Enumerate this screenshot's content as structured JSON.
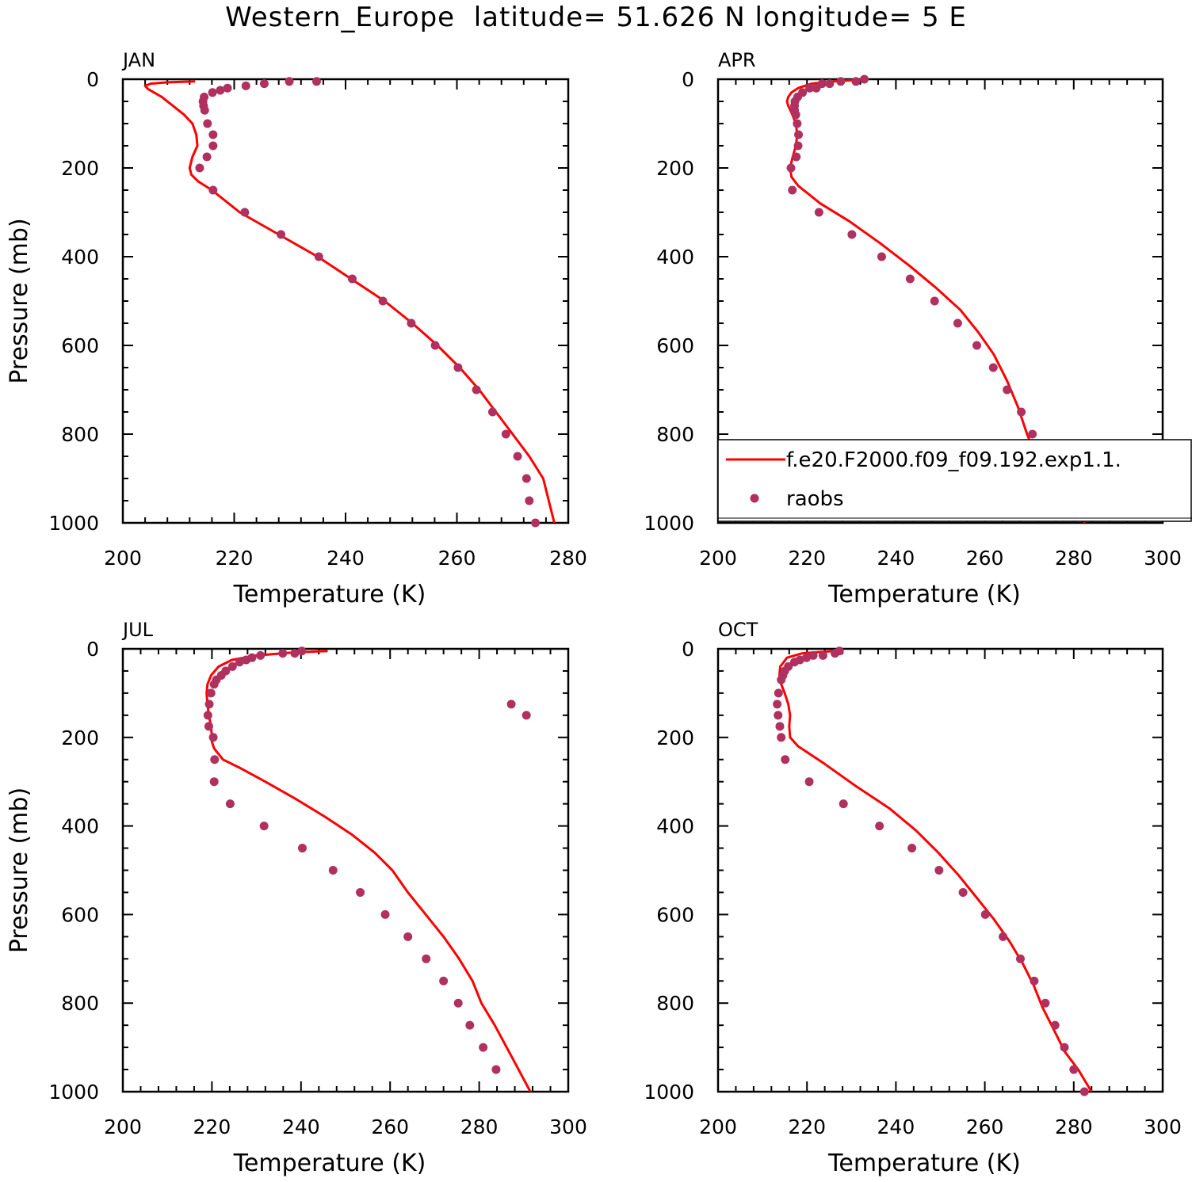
{
  "title": "Western_Europe  latitude= 51.626 N longitude= 5 E",
  "chart_data": [
    {
      "type": "line",
      "panel": "JAN",
      "xlabel": "Temperature (K)",
      "ylabel": "Pressure (mb)",
      "xlim": [
        200,
        280
      ],
      "xticks": [
        200,
        220,
        240,
        260,
        280
      ],
      "ylim": [
        1000,
        0
      ],
      "yticks": [
        0,
        200,
        400,
        600,
        800,
        1000
      ],
      "series": [
        {
          "name": "f.e20.F2000.f09_f09.192.exp1.1.",
          "kind": "line",
          "color": "#ff0000",
          "x": [
            213.0,
            208.0,
            205.0,
            204.0,
            204.5,
            207,
            209,
            211,
            212.5,
            213.2,
            213.4,
            212.5,
            212.0,
            212.3,
            213.5,
            216.0,
            221.0,
            228.0,
            235.0,
            241.0,
            247.0,
            252.0,
            256.5,
            260.5,
            264.0,
            267.0,
            270.0,
            273.0,
            275.5,
            277.5
          ],
          "y": [
            5,
            7,
            10,
            15,
            22,
            40,
            60,
            80,
            100,
            125,
            150,
            175,
            200,
            215,
            230,
            250,
            300,
            350,
            400,
            450,
            500,
            550,
            600,
            650,
            700,
            750,
            800,
            850,
            900,
            1000
          ]
        },
        {
          "name": "raobs",
          "kind": "scatter",
          "color": "#b03060",
          "x": [
            234.8,
            229.9,
            225.4,
            222.1,
            218.8,
            217.5,
            216.1,
            214.6,
            214.4,
            214.5,
            214.7,
            215.2,
            216.2,
            216.2,
            215.1,
            213.8,
            216.2,
            221.9,
            228.4,
            235.2,
            241.2,
            246.7,
            251.8,
            256.1,
            260.2,
            263.5,
            266.4,
            268.8,
            270.9,
            272.5,
            273.0,
            274.1
          ],
          "y": [
            5,
            5,
            10,
            15,
            20,
            25,
            30,
            40,
            50,
            60,
            70,
            100,
            125,
            150,
            175,
            200,
            250,
            300,
            350,
            400,
            450,
            500,
            550,
            600,
            650,
            700,
            750,
            800,
            850,
            900,
            950,
            1000
          ]
        }
      ]
    },
    {
      "type": "line",
      "panel": "APR",
      "xlabel": "Temperature (K)",
      "ylabel": "",
      "xlim": [
        200,
        300
      ],
      "xticks": [
        200,
        220,
        240,
        260,
        280,
        300
      ],
      "ylim": [
        1000,
        0
      ],
      "yticks": [
        0,
        200,
        400,
        600,
        800,
        1000
      ],
      "legend": {
        "position": "lower-right",
        "entries": [
          "f.e20.F2000.f09_f09.192.exp1.1.",
          "raobs"
        ]
      },
      "series": [
        {
          "name": "f.e20.F2000.f09_f09.192.exp1.1.",
          "kind": "line",
          "color": "#ff0000",
          "x": [
            233.0,
            226.0,
            221.0,
            218.0,
            216.5,
            215.8,
            215.5,
            215.8,
            216.5,
            217.5,
            217.8,
            217.5,
            216.8,
            216.2,
            216.5,
            218.0,
            223.0,
            229.5,
            236.5,
            243.0,
            249.0,
            254.5,
            258.5,
            262.0,
            265.0,
            267.5,
            269.5,
            271.5,
            274.0,
            276.5,
            280.0,
            282.5
          ],
          "y": [
            0,
            5,
            10,
            20,
            30,
            40,
            50,
            60,
            75,
            100,
            125,
            150,
            175,
            200,
            220,
            240,
            280,
            320,
            370,
            420,
            470,
            520,
            570,
            620,
            680,
            740,
            800,
            850,
            890,
            920,
            960,
            1000
          ]
        },
        {
          "name": "raobs",
          "kind": "scatter",
          "color": "#b03060",
          "x": [
            232.9,
            231.0,
            227.6,
            225.1,
            223.4,
            222.1,
            220.6,
            219.0,
            217.9,
            217.3,
            217.2,
            217.2,
            217.5,
            217.8,
            218.1,
            218.0,
            217.6,
            216.4,
            216.7,
            222.7,
            230.1,
            236.8,
            243.2,
            248.7,
            253.9,
            258.2,
            261.9,
            265.0,
            268.2,
            270.7,
            273.7,
            276.8,
            280.3
          ],
          "y": [
            0,
            5,
            5,
            10,
            10,
            20,
            20,
            30,
            40,
            50,
            60,
            70,
            80,
            100,
            125,
            150,
            175,
            200,
            250,
            300,
            350,
            400,
            450,
            500,
            550,
            600,
            650,
            700,
            750,
            800,
            850,
            900,
            950
          ]
        }
      ]
    },
    {
      "type": "line",
      "panel": "JUL",
      "xlabel": "Temperature (K)",
      "ylabel": "Pressure (mb)",
      "xlim": [
        200,
        300
      ],
      "xticks": [
        200,
        220,
        240,
        260,
        280,
        300
      ],
      "ylim": [
        1000,
        0
      ],
      "yticks": [
        0,
        200,
        400,
        600,
        800,
        1000
      ],
      "series": [
        {
          "name": "f.e20.F2000.f09_f09.192.exp1.1.",
          "kind": "line",
          "color": "#ff0000",
          "x": [
            246.0,
            238.5,
            230.0,
            224.5,
            221.5,
            219.8,
            219.0,
            218.8,
            219.0,
            219.3,
            219.8,
            220.0,
            220.0,
            220.5,
            222.5,
            226.5,
            232.0,
            239.0,
            245.5,
            251.5,
            256.5,
            260.5,
            264.0,
            268.0,
            272.0,
            275.5,
            278.5,
            280.5,
            283.5,
            287.5,
            291.5
          ],
          "y": [
            5,
            8,
            15,
            25,
            40,
            60,
            80,
            100,
            125,
            150,
            175,
            200,
            210,
            225,
            250,
            270,
            300,
            340,
            380,
            420,
            460,
            500,
            550,
            600,
            650,
            700,
            750,
            800,
            850,
            925,
            1000
          ]
        },
        {
          "name": "raobs",
          "kind": "scatter",
          "color": "#b03060",
          "x": [
            240.2,
            238.6,
            235.9,
            230.9,
            229.0,
            227.7,
            226.2,
            224.6,
            223.1,
            222.1,
            221.0,
            220.5,
            219.8,
            219.4,
            219.1,
            219.3,
            220.3,
            220.6,
            220.5,
            224.1,
            231.7,
            240.3,
            247.2,
            253.3,
            258.9,
            264.0,
            268.1,
            272.0,
            275.3,
            277.9,
            280.9,
            283.8,
            287.2,
            290.6
          ],
          "y": [
            5,
            10,
            10,
            15,
            20,
            25,
            30,
            40,
            50,
            60,
            70,
            80,
            100,
            125,
            150,
            175,
            200,
            250,
            300,
            350,
            400,
            450,
            500,
            550,
            600,
            650,
            700,
            750,
            800,
            850,
            900,
            950,
            125,
            150
          ]
        }
      ]
    },
    {
      "type": "line",
      "panel": "OCT",
      "xlabel": "Temperature (K)",
      "ylabel": "",
      "xlim": [
        200,
        300
      ],
      "xticks": [
        200,
        220,
        240,
        260,
        280,
        300
      ],
      "ylim": [
        1000,
        0
      ],
      "yticks": [
        0,
        200,
        400,
        600,
        800,
        1000
      ],
      "series": [
        {
          "name": "f.e20.F2000.f09_f09.192.exp1.1.",
          "kind": "line",
          "color": "#ff0000",
          "x": [
            226.0,
            219.0,
            215.5,
            214.0,
            213.8,
            214.2,
            215.0,
            215.8,
            216.2,
            216.0,
            216.2,
            218.0,
            224.0,
            231.0,
            238.5,
            244.5,
            249.5,
            254.0,
            258.0,
            262.0,
            265.5,
            268.5,
            271.0,
            273.0,
            275.5,
            278.0,
            281.0,
            284.0
          ],
          "y": [
            5,
            10,
            20,
            40,
            60,
            80,
            100,
            125,
            150,
            175,
            200,
            220,
            260,
            310,
            360,
            410,
            460,
            510,
            560,
            610,
            660,
            710,
            760,
            810,
            860,
            910,
            950,
            1000
          ]
        },
        {
          "name": "raobs",
          "kind": "scatter",
          "color": "#b03060",
          "x": [
            227.3,
            226.3,
            223.6,
            221.4,
            219.9,
            218.4,
            217.2,
            215.8,
            215.0,
            214.6,
            214.2,
            213.6,
            213.3,
            213.5,
            213.9,
            214.2,
            215.1,
            220.5,
            228.2,
            236.3,
            243.6,
            249.7,
            255.1,
            260.1,
            264.1,
            268.0,
            271.1,
            273.6,
            275.8,
            277.9,
            280.0,
            282.4
          ],
          "y": [
            5,
            10,
            15,
            15,
            20,
            25,
            30,
            40,
            50,
            60,
            70,
            100,
            125,
            150,
            175,
            200,
            250,
            300,
            350,
            400,
            450,
            500,
            550,
            600,
            650,
            700,
            750,
            800,
            850,
            900,
            950,
            1000
          ]
        }
      ]
    }
  ]
}
